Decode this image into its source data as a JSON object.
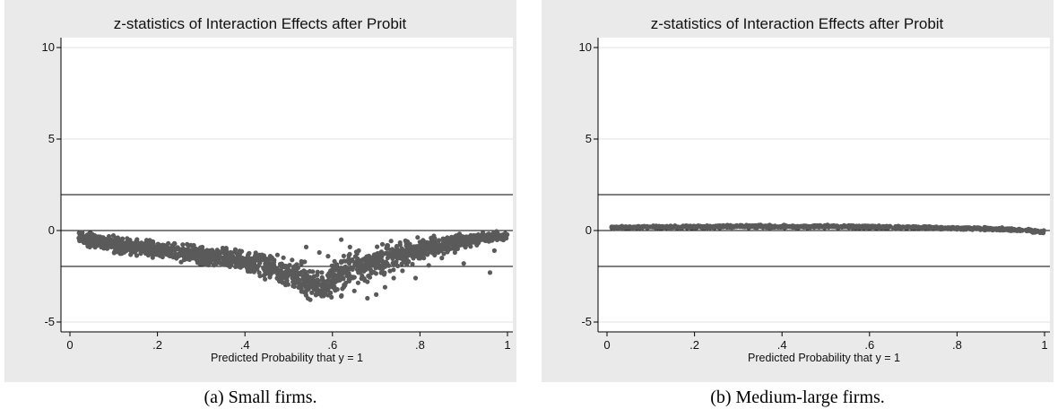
{
  "chart_data": [
    {
      "type": "scatter",
      "title": "z-statistics of Interaction Effects after Probit",
      "xlabel": "Predicted Probability that y = 1",
      "ylabel": "",
      "xlim": [
        0,
        1
      ],
      "ylim": [
        -5,
        10
      ],
      "xticks": [
        "0",
        ".2",
        ".4",
        ".6",
        ".8",
        "1"
      ],
      "yticks": [
        "-5",
        "0",
        "5",
        "10"
      ],
      "reference_lines_y": [
        1.96,
        0,
        -1.96
      ],
      "grid": true,
      "marker_color": "#5a5a5a",
      "band": [
        [
          0.02,
          -0.3,
          0.2
        ],
        [
          0.05,
          -0.55,
          0.3
        ],
        [
          0.1,
          -0.75,
          0.3
        ],
        [
          0.15,
          -0.9,
          0.3
        ],
        [
          0.2,
          -1.05,
          0.3
        ],
        [
          0.25,
          -1.2,
          0.3
        ],
        [
          0.3,
          -1.35,
          0.32
        ],
        [
          0.35,
          -1.5,
          0.35
        ],
        [
          0.4,
          -1.7,
          0.4
        ],
        [
          0.45,
          -2.0,
          0.45
        ],
        [
          0.5,
          -2.4,
          0.5
        ],
        [
          0.55,
          -2.8,
          0.55
        ],
        [
          0.58,
          -3.1,
          0.45
        ],
        [
          0.6,
          -2.7,
          0.6
        ],
        [
          0.65,
          -2.1,
          0.6
        ],
        [
          0.7,
          -1.7,
          0.55
        ],
        [
          0.75,
          -1.3,
          0.5
        ],
        [
          0.8,
          -1.0,
          0.4
        ],
        [
          0.85,
          -0.75,
          0.3
        ],
        [
          0.9,
          -0.55,
          0.25
        ],
        [
          0.95,
          -0.4,
          0.2
        ],
        [
          1.0,
          -0.3,
          0.15
        ]
      ],
      "outliers": [
        [
          0.54,
          -0.9
        ],
        [
          0.57,
          -1.2
        ],
        [
          0.59,
          -1.4
        ],
        [
          0.62,
          -0.5
        ],
        [
          0.64,
          -0.9
        ],
        [
          0.66,
          -1.1
        ],
        [
          0.68,
          -2.8
        ],
        [
          0.7,
          -3.5
        ],
        [
          0.72,
          -3.1
        ],
        [
          0.74,
          -2.6
        ],
        [
          0.76,
          -2.2
        ],
        [
          0.79,
          -2.6
        ],
        [
          0.82,
          -1.9
        ],
        [
          0.85,
          -1.5
        ],
        [
          0.88,
          -1.2
        ],
        [
          0.9,
          -1.8
        ],
        [
          0.93,
          -0.8
        ],
        [
          0.96,
          -2.3
        ],
        [
          0.97,
          -1.1
        ],
        [
          0.68,
          -3.7
        ],
        [
          0.65,
          -3.3
        ],
        [
          0.62,
          -3.6
        ]
      ]
    },
    {
      "type": "scatter",
      "title": "z-statistics of Interaction Effects after Probit",
      "xlabel": "Predicted Probability that y = 1",
      "ylabel": "",
      "xlim": [
        0,
        1
      ],
      "ylim": [
        -5,
        10
      ],
      "xticks": [
        "0",
        ".2",
        ".4",
        ".6",
        ".8",
        "1"
      ],
      "yticks": [
        "-5",
        "0",
        "5",
        "10"
      ],
      "reference_lines_y": [
        1.96,
        0,
        -1.96
      ],
      "grid": true,
      "marker_color": "#5a5a5a",
      "band": [
        [
          0.01,
          0.15,
          0.05
        ],
        [
          0.1,
          0.18,
          0.05
        ],
        [
          0.2,
          0.2,
          0.05
        ],
        [
          0.3,
          0.22,
          0.05
        ],
        [
          0.4,
          0.22,
          0.05
        ],
        [
          0.5,
          0.22,
          0.05
        ],
        [
          0.6,
          0.2,
          0.05
        ],
        [
          0.7,
          0.17,
          0.05
        ],
        [
          0.8,
          0.13,
          0.05
        ],
        [
          0.9,
          0.08,
          0.05
        ],
        [
          0.95,
          0.02,
          0.05
        ],
        [
          1.0,
          -0.08,
          0.06
        ]
      ],
      "outliers": []
    }
  ],
  "captions": [
    "(a) Small firms.",
    "(b) Medium-large firms."
  ]
}
